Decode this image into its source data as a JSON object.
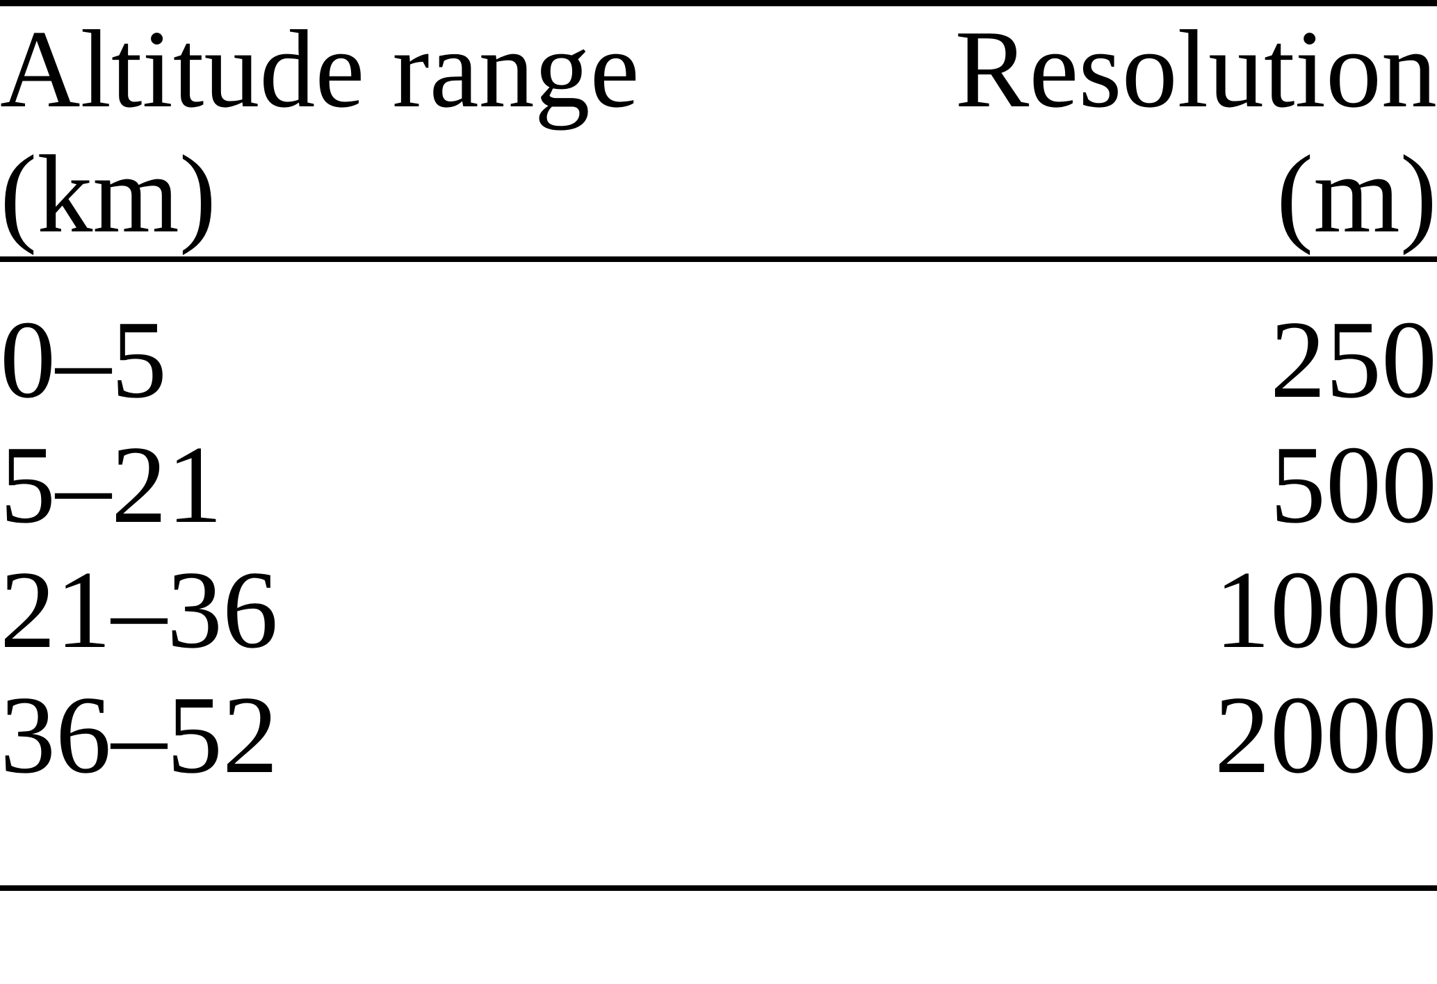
{
  "page": {
    "background_color": "#ffffff",
    "text_color": "#000000",
    "rule_color": "#000000"
  },
  "table": {
    "type": "table",
    "columns": [
      {
        "id": "altitude_range",
        "header_line1": "Altitude range",
        "header_line2": "(km)",
        "align": "left"
      },
      {
        "id": "resolution",
        "header_line1": "Resolution",
        "header_line2": "(m)",
        "align": "right"
      }
    ],
    "rows": [
      {
        "altitude_range": "0–5",
        "resolution": "250"
      },
      {
        "altitude_range": "5–21",
        "resolution": "500"
      },
      {
        "altitude_range": "21–36",
        "resolution": "1000"
      },
      {
        "altitude_range": "36–52",
        "resolution": "2000"
      }
    ]
  }
}
